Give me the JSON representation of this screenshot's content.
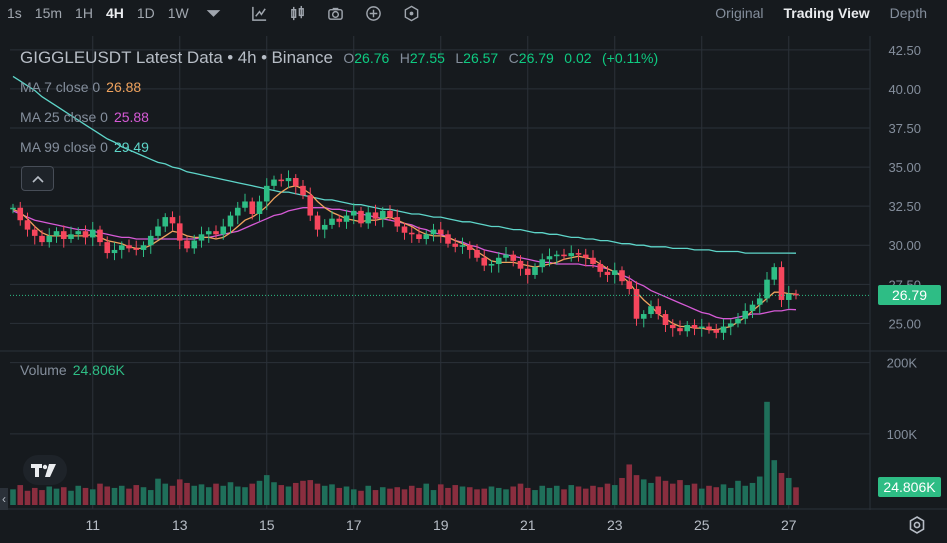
{
  "toolbar": {
    "timeframes": [
      "1s",
      "15m",
      "1H",
      "4H",
      "1D",
      "1W"
    ],
    "active_timeframe": "4H",
    "views": [
      "Original",
      "Trading View",
      "Depth"
    ],
    "active_view": "Trading View",
    "icons": [
      "chevron-down-icon",
      "indicators-icon",
      "candle-type-icon",
      "camera-icon",
      "add-icon",
      "hexagon-icon"
    ]
  },
  "legend": {
    "symbol": "GIGGLEUSDT Latest Data",
    "interval": "4h",
    "exchange": "Binance",
    "separator": "•",
    "o_label": "O",
    "o": "26.76",
    "h_label": "H",
    "h": "27.55",
    "l_label": "L",
    "l": "26.57",
    "c_label": "C",
    "c": "26.79",
    "change": "0.02",
    "change_pct": "(+0.11%)"
  },
  "ma": [
    {
      "label": "MA 7 close 0",
      "value": "26.88",
      "color": "#f0a35e"
    },
    {
      "label": "MA 25 close 0",
      "value": "25.88",
      "color": "#d65ad6"
    },
    {
      "label": "MA 99 close 0",
      "value": "29.49",
      "color": "#5ed5c9"
    }
  ],
  "volume": {
    "label": "Volume",
    "value": "24.806K"
  },
  "last_price": "26.79",
  "last_volume": "24.806K",
  "colors": {
    "up": "#2ebd85",
    "down": "#f6465d",
    "vol_up": "#1f6f5a",
    "vol_down": "#8a2e3f",
    "grid": "#2b3139",
    "axis_text": "#848e9c"
  },
  "chart_data": {
    "type": "candlestick",
    "title": "GIGGLEUSDT Latest Data · 4h · Binance",
    "price_axis": {
      "ticks": [
        "42.50",
        "40.00",
        "37.50",
        "35.00",
        "32.50",
        "30.00",
        "27.50",
        "25.00"
      ],
      "range": [
        23.3,
        43.0
      ]
    },
    "volume_axis": {
      "ticks": [
        "200K",
        "100K"
      ],
      "range": [
        0,
        215000
      ]
    },
    "x_axis": {
      "labels": [
        "11",
        "13",
        "15",
        "17",
        "19",
        "21",
        "23",
        "25",
        "27"
      ],
      "label_index": [
        11,
        23,
        35,
        47,
        59,
        71,
        83,
        95,
        107
      ]
    },
    "closes": [
      32.4,
      31.6,
      31.0,
      30.6,
      30.2,
      30.6,
      30.9,
      30.4,
      30.7,
      30.9,
      30.5,
      31.0,
      30.2,
      29.5,
      29.7,
      30.0,
      29.8,
      29.7,
      30.0,
      30.6,
      31.2,
      31.8,
      31.4,
      30.3,
      29.8,
      30.3,
      30.7,
      30.9,
      30.7,
      31.2,
      31.9,
      32.4,
      32.8,
      32.0,
      32.8,
      33.8,
      34.2,
      34.1,
      34.3,
      33.8,
      33.2,
      31.9,
      31.0,
      31.3,
      31.7,
      31.5,
      31.9,
      32.2,
      31.4,
      32.1,
      31.7,
      32.2,
      31.8,
      31.2,
      30.8,
      30.7,
      30.4,
      30.7,
      31.0,
      30.7,
      30.1,
      29.9,
      30.0,
      29.7,
      29.2,
      28.7,
      28.8,
      29.2,
      29.4,
      29.0,
      28.5,
      28.1,
      28.6,
      29.1,
      29.3,
      29.4,
      29.3,
      29.5,
      29.4,
      29.2,
      28.8,
      28.3,
      28.1,
      28.4,
      27.7,
      27.2,
      25.3,
      25.6,
      26.1,
      25.6,
      24.9,
      24.7,
      24.5,
      24.9,
      24.7,
      24.8,
      24.6,
      24.4,
      24.8,
      25.0,
      25.3,
      25.8,
      26.2,
      26.6,
      27.8,
      28.6,
      26.5,
      26.9,
      26.79
    ],
    "volumes": [
      22000,
      28000,
      20000,
      24000,
      21000,
      26000,
      23000,
      25000,
      20000,
      27000,
      24000,
      22000,
      30000,
      26000,
      24000,
      27000,
      23000,
      28000,
      25000,
      21000,
      37000,
      30000,
      27000,
      36000,
      31000,
      27000,
      29000,
      25000,
      30000,
      27000,
      32000,
      26000,
      25000,
      30000,
      34000,
      42000,
      32000,
      28000,
      26000,
      31000,
      34000,
      35000,
      30000,
      27000,
      29000,
      24000,
      26000,
      22000,
      20000,
      27000,
      21000,
      25000,
      23000,
      25000,
      22000,
      27000,
      24000,
      30000,
      21000,
      29000,
      24000,
      28000,
      26000,
      25000,
      22000,
      23000,
      26000,
      24000,
      22000,
      26000,
      30000,
      24000,
      21000,
      27000,
      24000,
      27000,
      22000,
      28000,
      26000,
      23000,
      27000,
      25000,
      30000,
      28000,
      38000,
      57000,
      42000,
      36000,
      31000,
      40000,
      34000,
      30000,
      35000,
      28000,
      30000,
      23000,
      27000,
      25000,
      29000,
      24000,
      34000,
      27000,
      31000,
      40000,
      145000,
      63000,
      45000,
      38000,
      24806
    ],
    "ma7": [
      32.3,
      32.1,
      31.7,
      31.2,
      30.8,
      30.6,
      30.6,
      30.6,
      30.6,
      30.6,
      30.6,
      30.7,
      30.5,
      30.3,
      30.2,
      30.1,
      29.9,
      29.8,
      29.8,
      30.0,
      30.3,
      30.6,
      30.9,
      30.8,
      30.6,
      30.5,
      30.5,
      30.5,
      30.4,
      30.5,
      30.8,
      31.2,
      31.6,
      31.8,
      32.1,
      32.5,
      33.0,
      33.4,
      33.7,
      33.8,
      33.6,
      33.3,
      32.8,
      32.4,
      32.1,
      31.9,
      31.7,
      31.6,
      31.5,
      31.6,
      31.6,
      31.7,
      31.8,
      31.6,
      31.4,
      31.2,
      30.9,
      30.7,
      30.6,
      30.6,
      30.5,
      30.3,
      30.1,
      29.9,
      29.6,
      29.3,
      29.0,
      28.9,
      28.9,
      28.9,
      28.8,
      28.7,
      28.6,
      28.7,
      28.8,
      28.9,
      29.1,
      29.2,
      29.3,
      29.2,
      29.1,
      28.8,
      28.5,
      28.3,
      28.0,
      27.6,
      27.0,
      26.5,
      26.1,
      25.6,
      25.3,
      25.0,
      24.8,
      24.8,
      24.7,
      24.7,
      24.6,
      24.6,
      24.7,
      24.8,
      25.1,
      25.4,
      25.8,
      26.2,
      26.6,
      27.0,
      27.0,
      26.9,
      26.88
    ],
    "ma25": [
      32.2,
      32.0,
      31.8,
      31.6,
      31.5,
      31.4,
      31.3,
      31.2,
      31.1,
      31.0,
      31.0,
      30.9,
      30.8,
      30.7,
      30.6,
      30.5,
      30.5,
      30.4,
      30.4,
      30.4,
      30.4,
      30.4,
      30.4,
      30.4,
      30.4,
      30.4,
      30.5,
      30.5,
      30.6,
      30.7,
      30.8,
      30.9,
      31.1,
      31.3,
      31.5,
      31.7,
      31.9,
      32.0,
      32.2,
      32.3,
      32.4,
      32.4,
      32.4,
      32.4,
      32.3,
      32.3,
      32.2,
      32.1,
      32.0,
      31.9,
      31.8,
      31.7,
      31.6,
      31.5,
      31.4,
      31.3,
      31.1,
      31.0,
      30.8,
      30.7,
      30.5,
      30.3,
      30.2,
      30.0,
      29.9,
      29.7,
      29.6,
      29.5,
      29.4,
      29.3,
      29.2,
      29.1,
      29.0,
      28.9,
      28.9,
      28.8,
      28.8,
      28.8,
      28.8,
      28.7,
      28.7,
      28.6,
      28.5,
      28.3,
      28.1,
      27.9,
      27.6,
      27.4,
      27.1,
      26.9,
      26.7,
      26.5,
      26.3,
      26.1,
      25.9,
      25.7,
      25.6,
      25.4,
      25.3,
      25.3,
      25.4,
      25.5,
      25.6,
      25.6,
      25.7,
      25.8,
      25.8,
      25.9,
      25.88
    ],
    "ma99": [
      40.8,
      40.5,
      40.2,
      39.9,
      39.5,
      39.2,
      38.9,
      38.6,
      38.3,
      38.0,
      37.7,
      37.4,
      37.1,
      36.8,
      36.6,
      36.3,
      36.1,
      35.9,
      35.7,
      35.5,
      35.3,
      35.2,
      35.0,
      34.9,
      34.7,
      34.6,
      34.5,
      34.4,
      34.3,
      34.2,
      34.1,
      34.0,
      33.9,
      33.8,
      33.7,
      33.6,
      33.5,
      33.4,
      33.4,
      33.3,
      33.2,
      33.1,
      33.0,
      32.9,
      32.9,
      32.8,
      32.7,
      32.6,
      32.6,
      32.5,
      32.4,
      32.3,
      32.3,
      32.2,
      32.1,
      32.0,
      32.0,
      31.9,
      31.8,
      31.8,
      31.7,
      31.6,
      31.5,
      31.5,
      31.4,
      31.3,
      31.2,
      31.2,
      31.1,
      31.0,
      31.0,
      30.9,
      30.8,
      30.8,
      30.7,
      30.7,
      30.6,
      30.5,
      30.5,
      30.4,
      30.4,
      30.3,
      30.3,
      30.2,
      30.1,
      30.1,
      30.0,
      30.0,
      29.9,
      29.9,
      29.9,
      29.8,
      29.8,
      29.8,
      29.7,
      29.7,
      29.7,
      29.6,
      29.6,
      29.6,
      29.6,
      29.5,
      29.5,
      29.5,
      29.5,
      29.5,
      29.5,
      29.5,
      29.49
    ]
  }
}
